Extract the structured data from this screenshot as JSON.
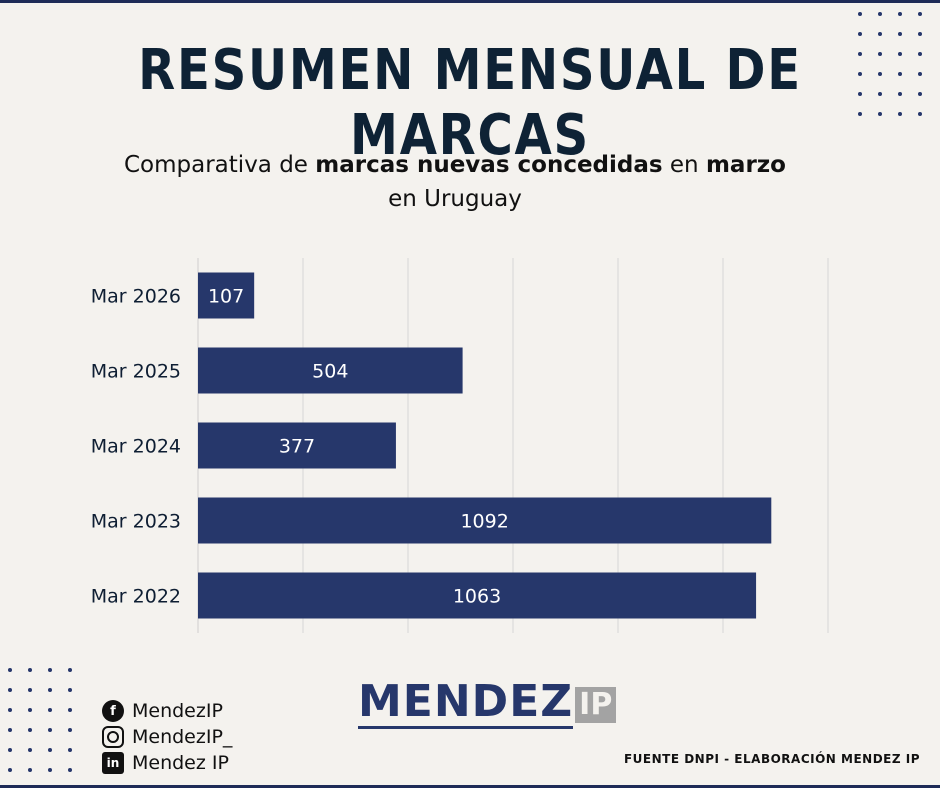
{
  "header": {
    "title": "RESUMEN MENSUAL DE MARCAS",
    "subtitle": {
      "part1": "Comparativa de ",
      "part2_bold": "marcas nuevas concedidas",
      "part3": " en ",
      "part4_bold": "marzo",
      "line2": "en Uruguay"
    }
  },
  "chart_data": {
    "type": "bar",
    "orientation": "horizontal",
    "title": "",
    "xlabel": "",
    "ylabel": "",
    "categories": [
      "Mar 2026",
      "Mar 2025",
      "Mar 2024",
      "Mar 2023",
      "Mar 2022"
    ],
    "values": [
      107,
      504,
      377,
      1092,
      1063
    ],
    "data_labels": [
      "107",
      "504",
      "377",
      "1092",
      "1063"
    ],
    "xlim": [
      0,
      1200
    ],
    "x_ticks": [
      "0",
      "200",
      "400",
      "600",
      "800",
      "1000",
      "1200"
    ],
    "grid": "vertical",
    "legend": "none",
    "bar_color": "#26376b",
    "grid_color": "#d6d6d6"
  },
  "social": [
    {
      "icon": "facebook-icon",
      "glyph": "f",
      "label": "MendezIP"
    },
    {
      "icon": "instagram-icon",
      "glyph": "",
      "label": "MendezIP_"
    },
    {
      "icon": "linkedin-icon",
      "glyph": "in",
      "label": "Mendez IP"
    }
  ],
  "logo": {
    "main": "MENDEZ",
    "suffix": "IP"
  },
  "source": "FUENTE DNPI - ELABORACIÓN MENDEZ IP",
  "colors": {
    "accent": "#26376b",
    "title": "#0e2235",
    "background": "#f4f2ee"
  }
}
